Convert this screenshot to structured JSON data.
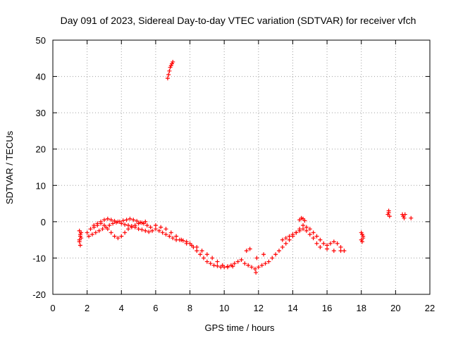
{
  "chart_data": {
    "type": "scatter",
    "title": "Day 091 of 2023, Sidereal Day-to-day VTEC variation (SDTVAR) for receiver vfch",
    "xlabel": "GPS time / hours",
    "ylabel": "SDTVAR / TECUs",
    "xlim": [
      0,
      22
    ],
    "ylim": [
      -20,
      50
    ],
    "xticks": [
      0,
      2,
      4,
      6,
      8,
      10,
      12,
      14,
      16,
      18,
      20,
      22
    ],
    "yticks": [
      -20,
      -10,
      0,
      10,
      20,
      30,
      40,
      50
    ],
    "grid": true,
    "marker": "+",
    "series": [
      {
        "name": "SDTVAR",
        "color": "#ff0000",
        "x": [
          1.55,
          1.6,
          1.65,
          1.55,
          1.6,
          1.65,
          1.55,
          1.6,
          2.0,
          2.2,
          2.4,
          2.6,
          2.8,
          3.0,
          3.2,
          3.4,
          3.6,
          3.8,
          4.0,
          4.2,
          4.4,
          4.6,
          4.8,
          5.0,
          5.2,
          5.4,
          5.6,
          5.8,
          6.0,
          6.2,
          6.4,
          6.6,
          6.8,
          7.0,
          7.2,
          7.4,
          7.6,
          7.8,
          8.0,
          8.2,
          8.4,
          8.6,
          8.8,
          9.0,
          9.2,
          9.4,
          9.6,
          9.8,
          10.0,
          10.2,
          10.4,
          10.6,
          2.1,
          2.3,
          2.5,
          2.7,
          2.9,
          3.1,
          3.3,
          3.5,
          3.7,
          3.9,
          4.1,
          4.3,
          4.5,
          4.7,
          4.9,
          5.1,
          5.3,
          5.5,
          5.7,
          2.4,
          2.6,
          2.8,
          3.0,
          3.2,
          3.4,
          3.6,
          3.8,
          4.0,
          4.2,
          4.4,
          4.6,
          4.8,
          5.0,
          5.2,
          5.4,
          6.0,
          6.3,
          6.6,
          6.9,
          7.2,
          7.5,
          7.8,
          8.1,
          8.4,
          8.7,
          9.0,
          9.3,
          9.6,
          9.9,
          10.2,
          10.5,
          6.7,
          6.75,
          6.8,
          6.85,
          6.9,
          6.95,
          7.0,
          10.8,
          11.0,
          11.2,
          11.4,
          11.6,
          11.8,
          12.0,
          12.2,
          12.4,
          12.6,
          12.8,
          13.0,
          11.85,
          11.3,
          11.5,
          11.9,
          12.3,
          13.2,
          13.4,
          13.6,
          13.8,
          14.0,
          14.2,
          14.4,
          14.6,
          14.8,
          15.0,
          15.2,
          15.4,
          15.6,
          15.8,
          16.0,
          16.2,
          16.4,
          16.6,
          16.8,
          17.0,
          13.4,
          13.6,
          13.8,
          14.0,
          14.2,
          14.4,
          14.6,
          14.8,
          15.0,
          15.2,
          15.4,
          15.6,
          16.0,
          16.4,
          16.8,
          14.4,
          14.5,
          14.6,
          14.7,
          18.0,
          18.05,
          18.1,
          18.0,
          18.05,
          18.1,
          19.55,
          19.6,
          19.65,
          19.6,
          20.4,
          20.45,
          20.5,
          20.55,
          20.9
        ],
        "y": [
          -2.5,
          -3.5,
          -4.5,
          -5.5,
          -6.5,
          -3,
          -5,
          -4,
          -3,
          -2,
          -1,
          -0.5,
          0,
          0.5,
          0.8,
          0.5,
          0.2,
          0,
          -0.5,
          -0.8,
          -1,
          -1.2,
          -1.5,
          -2,
          -2.2,
          -2.5,
          -2.8,
          -2.5,
          -2,
          -2.5,
          -3,
          -3.5,
          -4,
          -4.5,
          -5,
          -5,
          -5.2,
          -5.5,
          -6,
          -7,
          -8,
          -9,
          -10,
          -11,
          -11.5,
          -12,
          -12.2,
          -12.5,
          -12.5,
          -12.3,
          -12,
          -11.5,
          -4,
          -3.5,
          -3,
          -2.5,
          -2,
          -1.5,
          -1,
          -0.5,
          -0.2,
          0,
          0.3,
          0.5,
          0.8,
          0.5,
          0.2,
          -0.2,
          -0.5,
          -1,
          -1.5,
          -1.5,
          -1,
          -0.5,
          -1,
          -2,
          -3,
          -4,
          -4.5,
          -4,
          -3,
          -2,
          -1.5,
          -1,
          -0.5,
          -0.3,
          0,
          -1,
          -1.5,
          -2,
          -3,
          -4,
          -5,
          -6,
          -6.5,
          -7,
          -8,
          -9,
          -10,
          -11,
          -12,
          -12.5,
          -12.3,
          39.5,
          40.5,
          41.5,
          42.5,
          43,
          43.5,
          44,
          -11,
          -10.5,
          -11.5,
          -12,
          -12.5,
          -13,
          -12.5,
          -12,
          -11.5,
          -11,
          -10,
          -9,
          -14,
          -8,
          -7.5,
          -10,
          -9,
          -8,
          -7,
          -6,
          -5,
          -4,
          -3,
          -2,
          -1,
          -1.5,
          -2,
          -3,
          -4,
          -5,
          -6,
          -6.5,
          -6,
          -5.5,
          -6,
          -7,
          -8,
          -5,
          -4.5,
          -4,
          -3.5,
          -3,
          -2.5,
          -2,
          -2.5,
          -3.5,
          -4.5,
          -6,
          -7,
          -7.5,
          -8,
          -8,
          0.5,
          1,
          0.8,
          0.3,
          -3,
          -3.5,
          -4,
          -5,
          -5.5,
          -4.5,
          2,
          2.5,
          1.5,
          3,
          2,
          1.5,
          1,
          2,
          1
        ]
      }
    ]
  }
}
